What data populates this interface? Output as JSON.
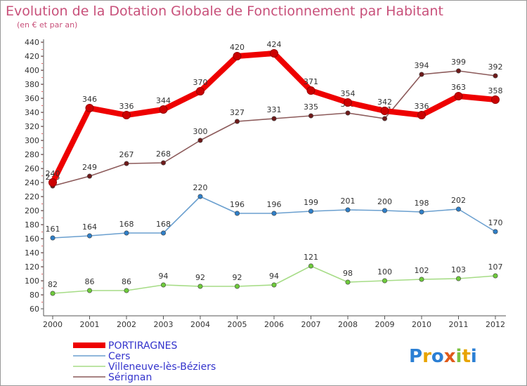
{
  "chart_data": {
    "type": "line",
    "title": "Evolution de la Dotation Globale de Fonctionnement par Habitant",
    "subtitle": "(en € et par an)",
    "xlabel": "",
    "ylabel": "",
    "ylim": [
      60,
      440
    ],
    "ytick_step": 20,
    "grid": false,
    "legend_position": "bottom-left",
    "categories": [
      "2000",
      "2001",
      "2002",
      "2003",
      "2004",
      "2005",
      "2006",
      "2007",
      "2008",
      "2009",
      "2010",
      "2011",
      "2012"
    ],
    "series": [
      {
        "name": "PORTIRAGNES",
        "color": "#ee0000",
        "marker_color": "#cc0000",
        "values": [
          240,
          346,
          336,
          344,
          370,
          420,
          424,
          371,
          354,
          342,
          336,
          363,
          358
        ]
      },
      {
        "name": "Cers",
        "color": "#6a9fcf",
        "marker_color": "#2f7fc8",
        "values": [
          161,
          164,
          168,
          168,
          220,
          196,
          196,
          199,
          201,
          200,
          198,
          202,
          170
        ]
      },
      {
        "name": "Villeneuve-lès-Béziers",
        "color": "#a6dc86",
        "marker_color": "#6ecb3b",
        "values": [
          82,
          86,
          86,
          94,
          92,
          92,
          94,
          121,
          98,
          100,
          102,
          103,
          107
        ]
      },
      {
        "name": "Sérignan",
        "color": "#8c5a5a",
        "marker_color": "#6e1a1a",
        "values": [
          235,
          249,
          267,
          268,
          300,
          327,
          331,
          335,
          339,
          331,
          394,
          399,
          392
        ]
      }
    ]
  },
  "logo": {
    "text": "Proxiti"
  },
  "colors": {
    "title": "#c8507a",
    "legend_text": "#3333cc",
    "axis_red": "#cc0000",
    "frame": "#999999"
  }
}
